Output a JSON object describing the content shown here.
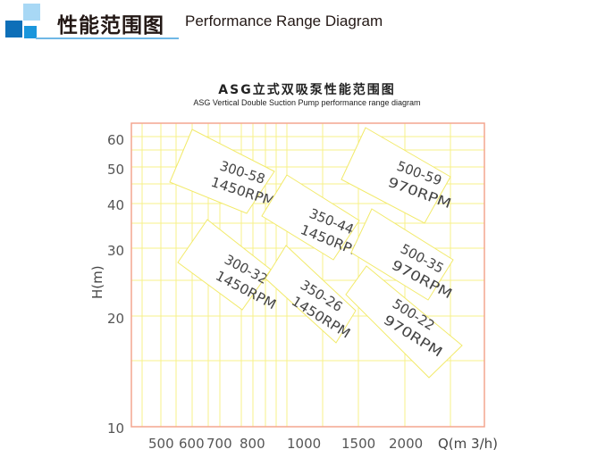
{
  "header": {
    "title_cn": "性能范围图",
    "title_en": "Performance Range Diagram"
  },
  "colors": {
    "dark_blue": "#0e6fb8",
    "mid_blue": "#1a96dc",
    "light_blue": "#a8d8f5",
    "grid": "#f7f08a",
    "frame": "#f4a58f"
  },
  "chart_data": {
    "type": "area",
    "title": "ASG立式双吸泵性能范围图",
    "subtitle": "ASG Vertical Double Suction Pump performance range diagram",
    "xlabel": "Q(m 3/h)",
    "ylabel": "H(m)",
    "x_scale": "log",
    "y_scale": "log",
    "ylim": [
      10,
      65
    ],
    "grid": true,
    "x_ticks": [
      "500",
      "600",
      "700",
      "800",
      "1000",
      "1500",
      "2000"
    ],
    "y_ticks": [
      "60",
      "50",
      "40",
      "30",
      "20",
      "10"
    ],
    "regions": [
      {
        "model": "300-58",
        "speed": "1450RPM"
      },
      {
        "model": "350-44",
        "speed": "1450RPM"
      },
      {
        "model": "500-59",
        "speed": "970RPM"
      },
      {
        "model": "300-32",
        "speed": "1450RPM"
      },
      {
        "model": "350-26",
        "speed": "1450RPM"
      },
      {
        "model": "500-35",
        "speed": "970RPM"
      },
      {
        "model": "500-22",
        "speed": "970RPM"
      }
    ]
  }
}
